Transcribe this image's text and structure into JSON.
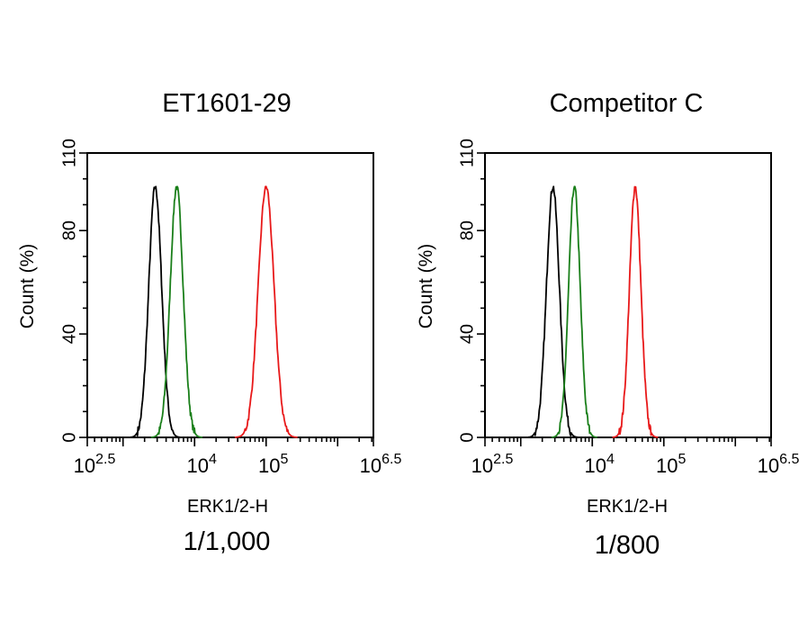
{
  "chart_data": [
    {
      "type": "line",
      "title": "ET1601-29",
      "xlabel": "ERK1/2-H",
      "ylabel": "Count (%)",
      "dilution": "1/1,000",
      "xscale": "log10",
      "xlim_exp": [
        2.5,
        6.5
      ],
      "ylim": [
        0,
        110
      ],
      "xticks": [
        {
          "base": "10",
          "exp": "2.5",
          "value": 2.5
        },
        {
          "base": "10",
          "exp": "4",
          "value": 4
        },
        {
          "base": "10",
          "exp": "5",
          "value": 5
        },
        {
          "base": "10",
          "exp": "6.5",
          "value": 6.5
        }
      ],
      "yticks": [
        0,
        40,
        80,
        110
      ],
      "grid": false,
      "series": [
        {
          "color": "#000000",
          "peak_log10": 3.45,
          "width_log10": 0.09,
          "peak": 97
        },
        {
          "color": "#1a7f1a",
          "peak_log10": 3.75,
          "width_log10": 0.09,
          "peak": 97
        },
        {
          "color": "#e8191a",
          "peak_log10": 5.0,
          "width_log10": 0.11,
          "peak": 97
        }
      ]
    },
    {
      "type": "line",
      "title": "Competitor C",
      "xlabel": "ERK1/2-H",
      "ylabel": "Count (%)",
      "dilution": "1/800",
      "xscale": "log10",
      "xlim_exp": [
        2.5,
        6.5
      ],
      "ylim": [
        0,
        110
      ],
      "xticks": [
        {
          "base": "10",
          "exp": "2.5",
          "value": 2.5
        },
        {
          "base": "10",
          "exp": "4",
          "value": 4
        },
        {
          "base": "10",
          "exp": "5",
          "value": 5
        },
        {
          "base": "10",
          "exp": "6.5",
          "value": 6.5
        }
      ],
      "yticks": [
        0,
        40,
        80,
        110
      ],
      "grid": false,
      "series": [
        {
          "color": "#000000",
          "peak_log10": 3.45,
          "width_log10": 0.09,
          "peak": 97
        },
        {
          "color": "#1a7f1a",
          "peak_log10": 3.75,
          "width_log10": 0.08,
          "peak": 97
        },
        {
          "color": "#e8191a",
          "peak_log10": 4.6,
          "width_log10": 0.08,
          "peak": 97
        }
      ]
    }
  ]
}
